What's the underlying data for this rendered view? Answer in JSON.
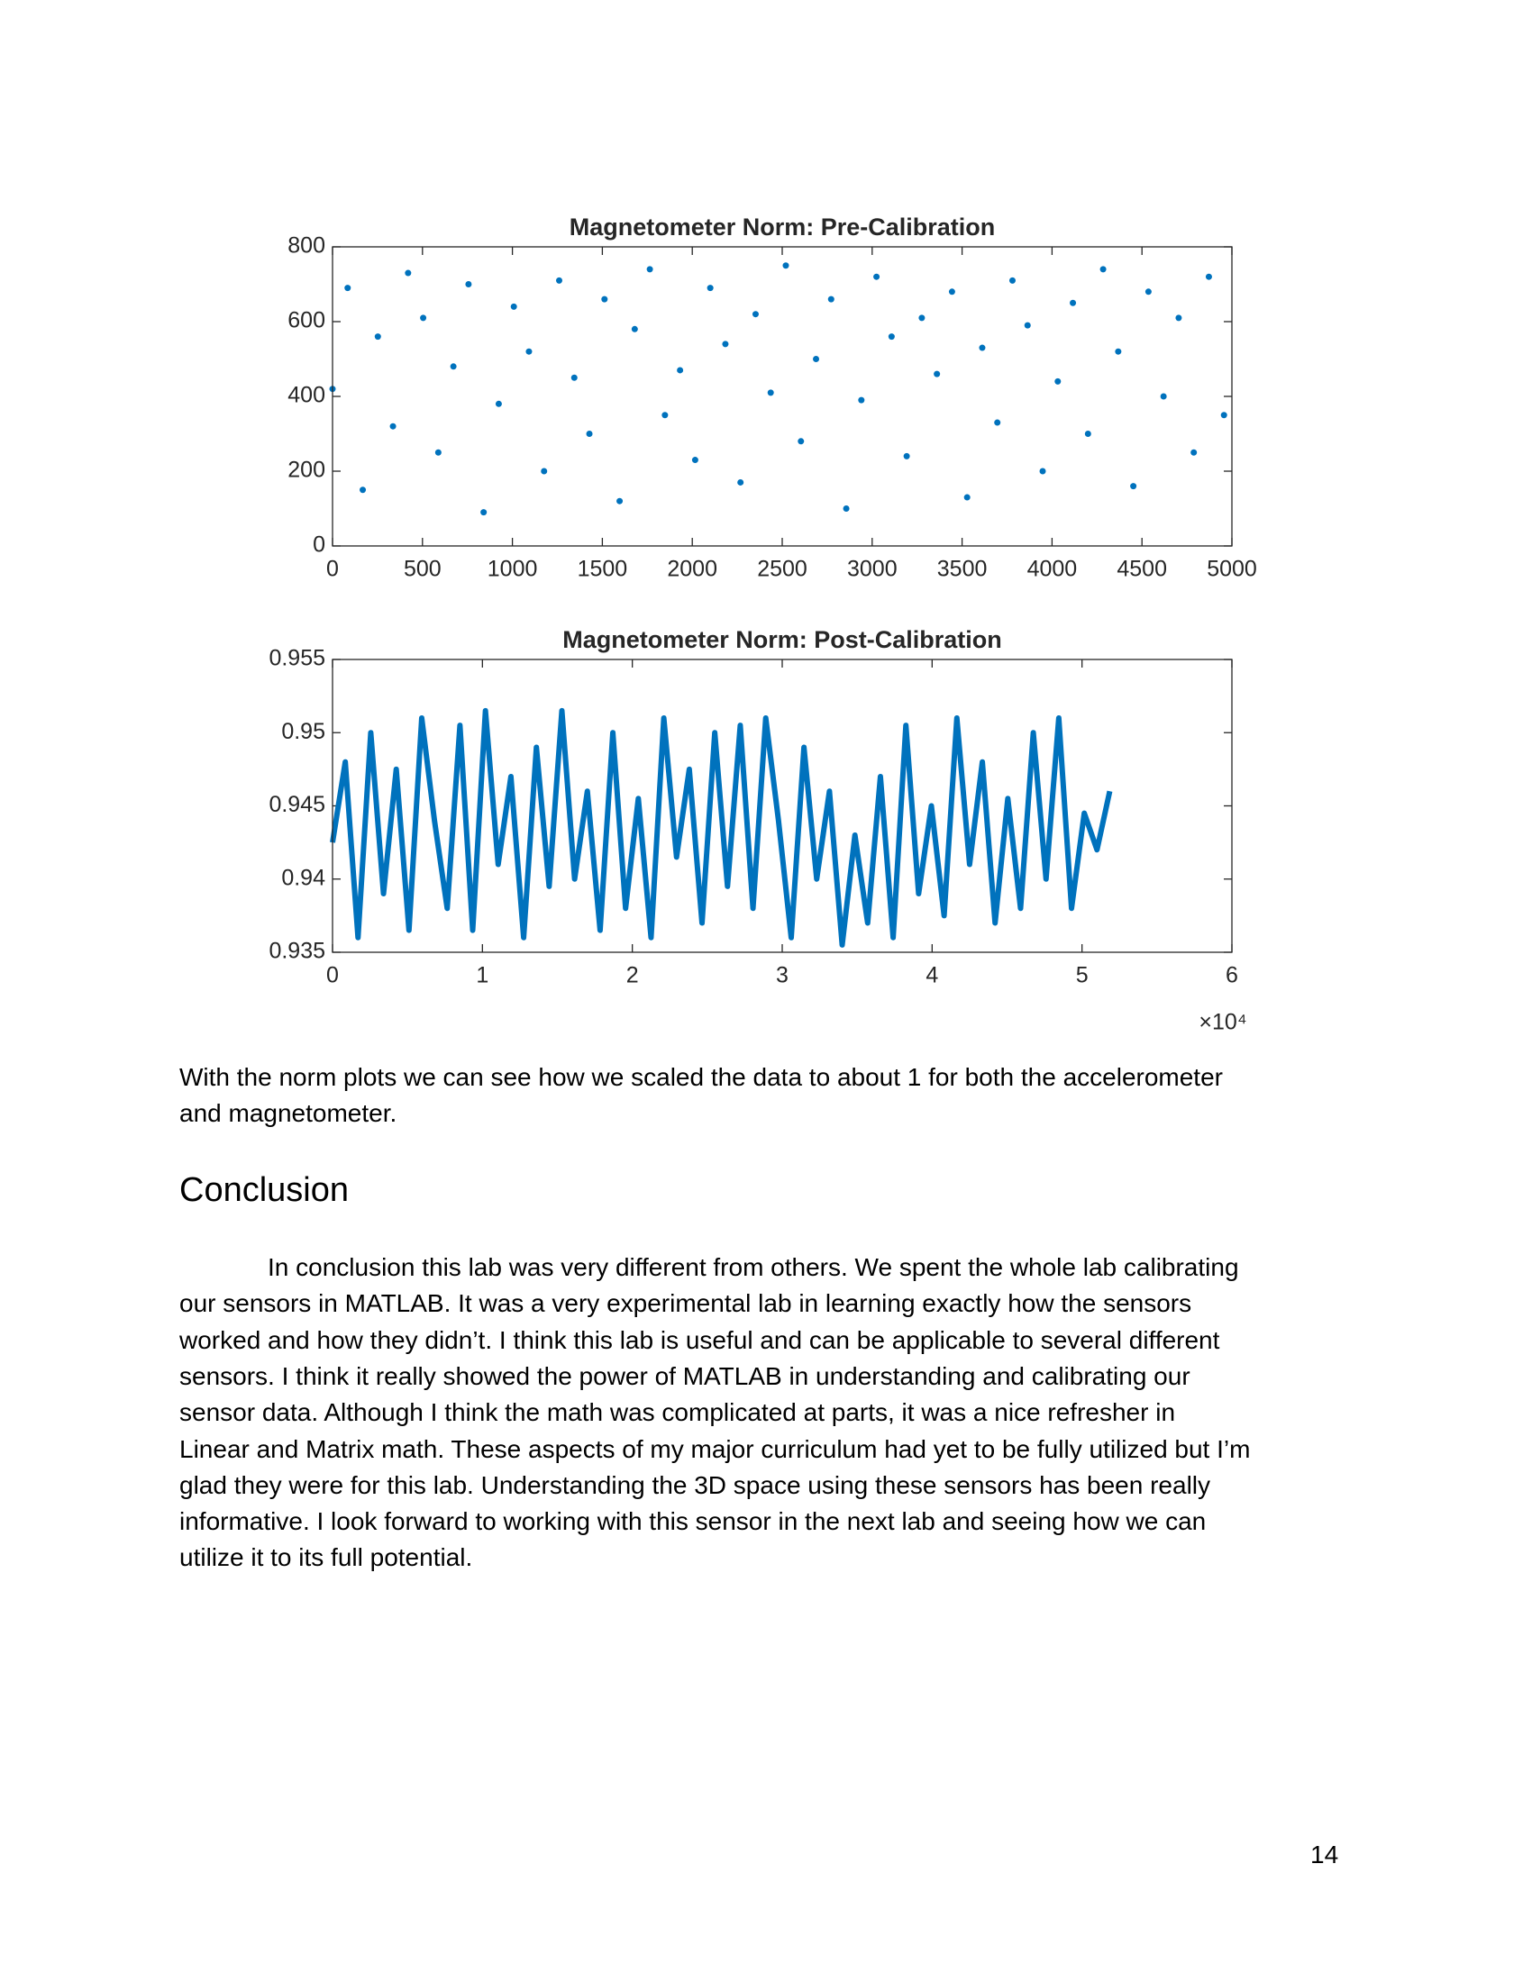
{
  "chart_data": [
    {
      "type": "scatter",
      "title": "Magnetometer Norm: Pre-Calibration",
      "color": "#0072bd",
      "x": [
        0,
        84,
        168,
        252,
        336,
        420,
        504,
        588,
        672,
        756,
        840,
        924,
        1008,
        1092,
        1176,
        1260,
        1344,
        1428,
        1512,
        1596,
        1680,
        1764,
        1848,
        1932,
        2016,
        2100,
        2184,
        2268,
        2352,
        2436,
        2520,
        2604,
        2688,
        2772,
        2856,
        2940,
        3024,
        3108,
        3192,
        3276,
        3360,
        3444,
        3528,
        3612,
        3696,
        3780,
        3864,
        3948,
        4032,
        4116,
        4200,
        4284,
        4368,
        4452,
        4536,
        4620,
        4704,
        4788,
        4872,
        4956
      ],
      "values": [
        420,
        690,
        150,
        560,
        320,
        730,
        610,
        250,
        480,
        700,
        90,
        380,
        640,
        520,
        200,
        710,
        450,
        300,
        660,
        120,
        580,
        740,
        350,
        470,
        230,
        690,
        540,
        170,
        620,
        410,
        750,
        280,
        500,
        660,
        100,
        390,
        720,
        560,
        240,
        610,
        460,
        680,
        130,
        530,
        330,
        710,
        590,
        200,
        440,
        650,
        300,
        740,
        520,
        160,
        680,
        400,
        610,
        250,
        720,
        350
      ],
      "xlim": [
        0,
        5000
      ],
      "xticks": [
        0,
        500,
        1000,
        1500,
        2000,
        2500,
        3000,
        3500,
        4000,
        4500,
        5000
      ],
      "ylim": [
        0,
        800
      ],
      "yticks": [
        0,
        200,
        400,
        600,
        800
      ]
    },
    {
      "type": "line",
      "title": "Magnetometer Norm: Post-Calibration",
      "color": "#0072bd",
      "x": [
        0,
        850,
        1700,
        2550,
        3400,
        4250,
        5100,
        5950,
        6800,
        7650,
        8500,
        9350,
        10200,
        11050,
        11900,
        12750,
        13600,
        14450,
        15300,
        16150,
        17000,
        17850,
        18700,
        19550,
        20400,
        21250,
        22100,
        22950,
        23800,
        24650,
        25500,
        26350,
        27200,
        28050,
        28900,
        29750,
        30600,
        31450,
        32300,
        33150,
        34000,
        34850,
        35700,
        36550,
        37400,
        38250,
        39100,
        39950,
        40800,
        41650,
        42500,
        43350,
        44200,
        45050,
        45900,
        46750,
        47600,
        48450,
        49300,
        50150,
        51000,
        51850
      ],
      "values": [
        0.9425,
        0.948,
        0.936,
        0.95,
        0.939,
        0.9475,
        0.9365,
        0.951,
        0.944,
        0.938,
        0.9505,
        0.9365,
        0.9515,
        0.941,
        0.947,
        0.936,
        0.949,
        0.9395,
        0.9515,
        0.94,
        0.946,
        0.9365,
        0.95,
        0.938,
        0.9455,
        0.936,
        0.951,
        0.9415,
        0.9475,
        0.937,
        0.95,
        0.9395,
        0.9505,
        0.938,
        0.951,
        0.944,
        0.936,
        0.949,
        0.94,
        0.946,
        0.9355,
        0.943,
        0.937,
        0.947,
        0.936,
        0.9505,
        0.939,
        0.945,
        0.9375,
        0.951,
        0.941,
        0.948,
        0.937,
        0.9455,
        0.938,
        0.95,
        0.94,
        0.951,
        0.938,
        0.9445,
        0.942,
        0.946
      ],
      "xlim": [
        0,
        60000
      ],
      "xticks": [
        {
          "value": 0,
          "label": "0"
        },
        {
          "value": 10000,
          "label": "1"
        },
        {
          "value": 20000,
          "label": "2"
        },
        {
          "value": 30000,
          "label": "3"
        },
        {
          "value": 40000,
          "label": "4"
        },
        {
          "value": 50000,
          "label": "5"
        },
        {
          "value": 60000,
          "label": "6"
        }
      ],
      "x_multiplier": "×10⁴",
      "ylim": [
        0.935,
        0.955
      ],
      "yticks": [
        0.935,
        0.94,
        0.945,
        0.95,
        0.955
      ]
    }
  ],
  "document": {
    "paragraph": [
      "With the norm plots we can see how we scaled the data to about 1 for both the accelerometer",
      "and magnetometer."
    ],
    "heading": "Conclusion",
    "conclusion": [
      "In conclusion this lab was very different from others. We spent the whole lab calibrating",
      "our sensors in MATLAB. It was a very experimental lab in learning exactly how the sensors",
      "worked and how they didn’t. I think this lab is useful and can be applicable to several different",
      "sensors. I think it really showed the power of MATLAB in understanding and calibrating our",
      "sensor data. Although I think the math was complicated at parts, it was a nice refresher in",
      "Linear and Matrix math. These aspects of my major curriculum had yet to be fully utilized but I’m",
      "glad they were for this lab. Understanding the 3D space using these sensors has been really",
      "informative. I look forward to working with this sensor in the next lab and seeing how we can",
      "utilize it to its full potential."
    ],
    "page_number": "14"
  }
}
